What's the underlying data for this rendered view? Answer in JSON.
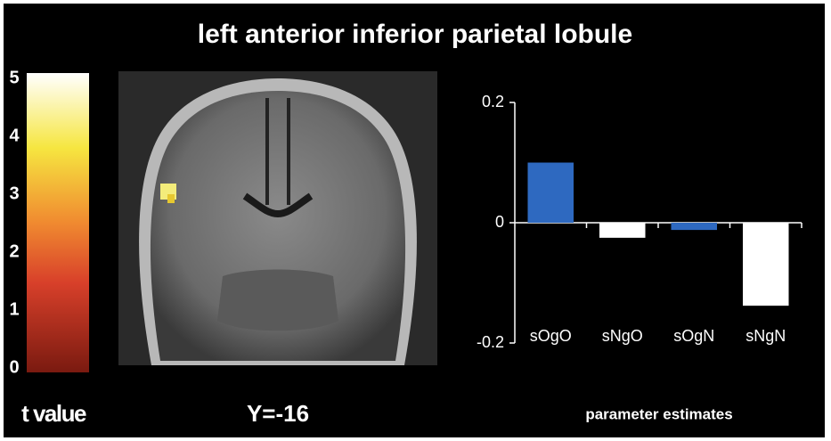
{
  "title": "left anterior inferior parietal lobule",
  "colorbar": {
    "label": "t value",
    "ylim": [
      0,
      5
    ],
    "yticks": [
      0,
      1,
      2,
      3,
      4,
      5
    ]
  },
  "slice_label": "Y=-16",
  "chart_data": {
    "type": "bar",
    "xlabel": "parameter estimates",
    "categories": [
      "sOgO",
      "sNgO",
      "sOgN",
      "sNgN"
    ],
    "values": [
      0.1,
      -0.025,
      -0.012,
      -0.138
    ],
    "colors": [
      "#2e69c0",
      "#ffffff",
      "#2e69c0",
      "#ffffff"
    ],
    "ylim": [
      -0.2,
      0.2
    ],
    "yticks": [
      0.2,
      0,
      -0.2
    ]
  }
}
